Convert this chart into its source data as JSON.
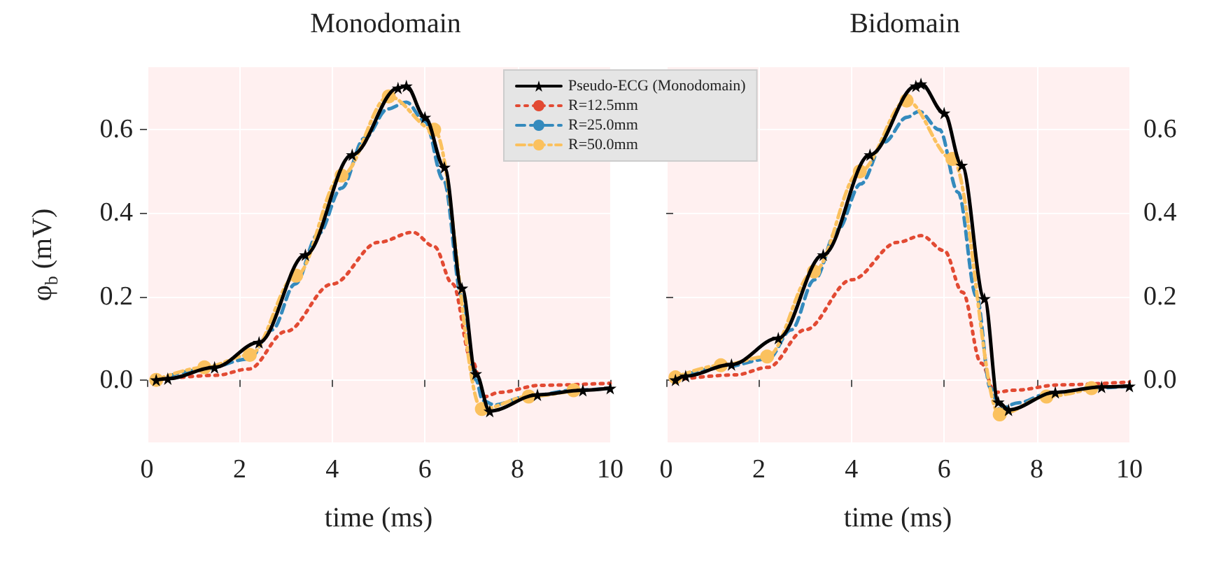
{
  "chart_data": [
    {
      "type": "line",
      "title": "Monodomain",
      "xlabel": "time (ms)",
      "ylabel": "φ$_{b}$ (mV)",
      "xlim": [
        0,
        10
      ],
      "xticks": [
        0,
        2,
        4,
        6,
        8,
        10
      ],
      "ylim": [
        -0.15,
        0.75
      ],
      "yticks": [
        {
          "value": 0,
          "label": "0.0"
        },
        {
          "value": 0.2,
          "label": "0.2"
        },
        {
          "value": 0.4,
          "label": "0.4"
        },
        {
          "value": 0.6,
          "label": "0.6"
        }
      ],
      "grid": true,
      "legend": "top right",
      "series": [
        {
          "name": "Pseudo-ECG (Monodomain)",
          "color": "#000000",
          "line_style": "solid",
          "marker": "star",
          "x": [
            0.2,
            0.45,
            1.46,
            2.42,
            3.42,
            4.43,
            5.42,
            5.6,
            6.0,
            6.42,
            6.8,
            7.1,
            7.4,
            8.43,
            9.41,
            10
          ],
          "values": [
            0,
            0.003,
            0.03,
            0.09,
            0.3,
            0.54,
            0.7,
            0.705,
            0.63,
            0.51,
            0.22,
            0.015,
            -0.075,
            -0.036,
            -0.025,
            -0.02
          ]
        },
        {
          "name": "R=12.5mm",
          "color": "#e24a33",
          "line_style": "dotted",
          "x": [
            0.2,
            1.5,
            2.2,
            3.0,
            4.0,
            5.0,
            5.74,
            6.2,
            6.6,
            7.0,
            7.3,
            7.6,
            8.5,
            10
          ],
          "values": [
            0,
            0.011,
            0.026,
            0.116,
            0.23,
            0.33,
            0.354,
            0.32,
            0.23,
            0.05,
            -0.04,
            -0.03,
            -0.013,
            -0.008
          ]
        },
        {
          "name": "R=25.0mm",
          "color": "#348abd",
          "line_style": "dashed",
          "x": [
            0.2,
            1.2,
            2.2,
            2.7,
            3.2,
            3.7,
            4.2,
            4.7,
            5.2,
            5.6,
            6.0,
            6.4,
            6.8,
            7.1,
            7.25,
            7.5,
            8.2,
            9.2,
            10
          ],
          "values": [
            0,
            0.025,
            0.05,
            0.12,
            0.23,
            0.35,
            0.46,
            0.58,
            0.65,
            0.666,
            0.62,
            0.48,
            0.2,
            0.0,
            -0.05,
            -0.06,
            -0.04,
            -0.025,
            -0.02
          ]
        },
        {
          "name": "R=50.0mm",
          "color": "#fbc15e",
          "line_style": "dashdot",
          "marker": "circle",
          "x": [
            0.2,
            1.24,
            2.22,
            3.22,
            4.2,
            5.22,
            6.2,
            7.23,
            8.24,
            9.21
          ],
          "values": [
            0,
            0.03,
            0.06,
            0.25,
            0.49,
            0.68,
            0.6,
            -0.07,
            -0.04,
            -0.025
          ]
        }
      ]
    },
    {
      "type": "line",
      "title": "Bidomain",
      "xlabel": "time (ms)",
      "xlim": [
        0,
        10
      ],
      "xticks": [
        0,
        2,
        4,
        6,
        8,
        10
      ],
      "ylim": [
        -0.15,
        0.75
      ],
      "yticks": [
        {
          "value": 0,
          "label": "0.0"
        },
        {
          "value": 0.2,
          "label": "0.2"
        },
        {
          "value": 0.4,
          "label": "0.4"
        },
        {
          "value": 0.6,
          "label": "0.6"
        }
      ],
      "grid": true,
      "series": [
        {
          "color": "#000000",
          "line_style": "solid",
          "marker": "star",
          "x": [
            0.2,
            0.42,
            1.41,
            2.42,
            3.39,
            4.4,
            5.39,
            5.5,
            6.0,
            6.38,
            6.87,
            7.17,
            7.39,
            8.4,
            9.4,
            10
          ],
          "values": [
            0,
            0.009,
            0.037,
            0.1,
            0.3,
            0.54,
            0.705,
            0.71,
            0.64,
            0.515,
            0.195,
            -0.053,
            -0.072,
            -0.03,
            -0.017,
            -0.015
          ]
        },
        {
          "color": "#e24a33",
          "line_style": "dotted",
          "x": [
            0.2,
            1.5,
            2.2,
            3.0,
            4.0,
            5.0,
            5.51,
            6.0,
            6.4,
            6.8,
            7.1,
            7.5,
            8.5,
            10
          ],
          "values": [
            0,
            0.012,
            0.03,
            0.12,
            0.24,
            0.33,
            0.346,
            0.31,
            0.21,
            0.04,
            -0.03,
            -0.025,
            -0.012,
            -0.005
          ]
        },
        {
          "color": "#348abd",
          "line_style": "dashed",
          "x": [
            0.2,
            1.2,
            2.2,
            2.7,
            3.2,
            3.7,
            4.2,
            4.7,
            5.2,
            5.46,
            5.9,
            6.3,
            6.7,
            7.0,
            7.2,
            7.6,
            8.2,
            9.2,
            10
          ],
          "values": [
            0.005,
            0.03,
            0.05,
            0.12,
            0.24,
            0.36,
            0.47,
            0.57,
            0.63,
            0.644,
            0.6,
            0.45,
            0.2,
            -0.02,
            -0.07,
            -0.055,
            -0.035,
            -0.02,
            -0.015
          ]
        },
        {
          "color": "#fbc15e",
          "line_style": "dashdot",
          "marker": "circle",
          "x": [
            0.2,
            1.18,
            2.18,
            3.19,
            4.18,
            5.19,
            6.18,
            7.2,
            8.21,
            9.18
          ],
          "values": [
            0.006,
            0.035,
            0.056,
            0.26,
            0.5,
            0.67,
            0.53,
            -0.083,
            -0.04,
            -0.02
          ]
        }
      ]
    }
  ]
}
